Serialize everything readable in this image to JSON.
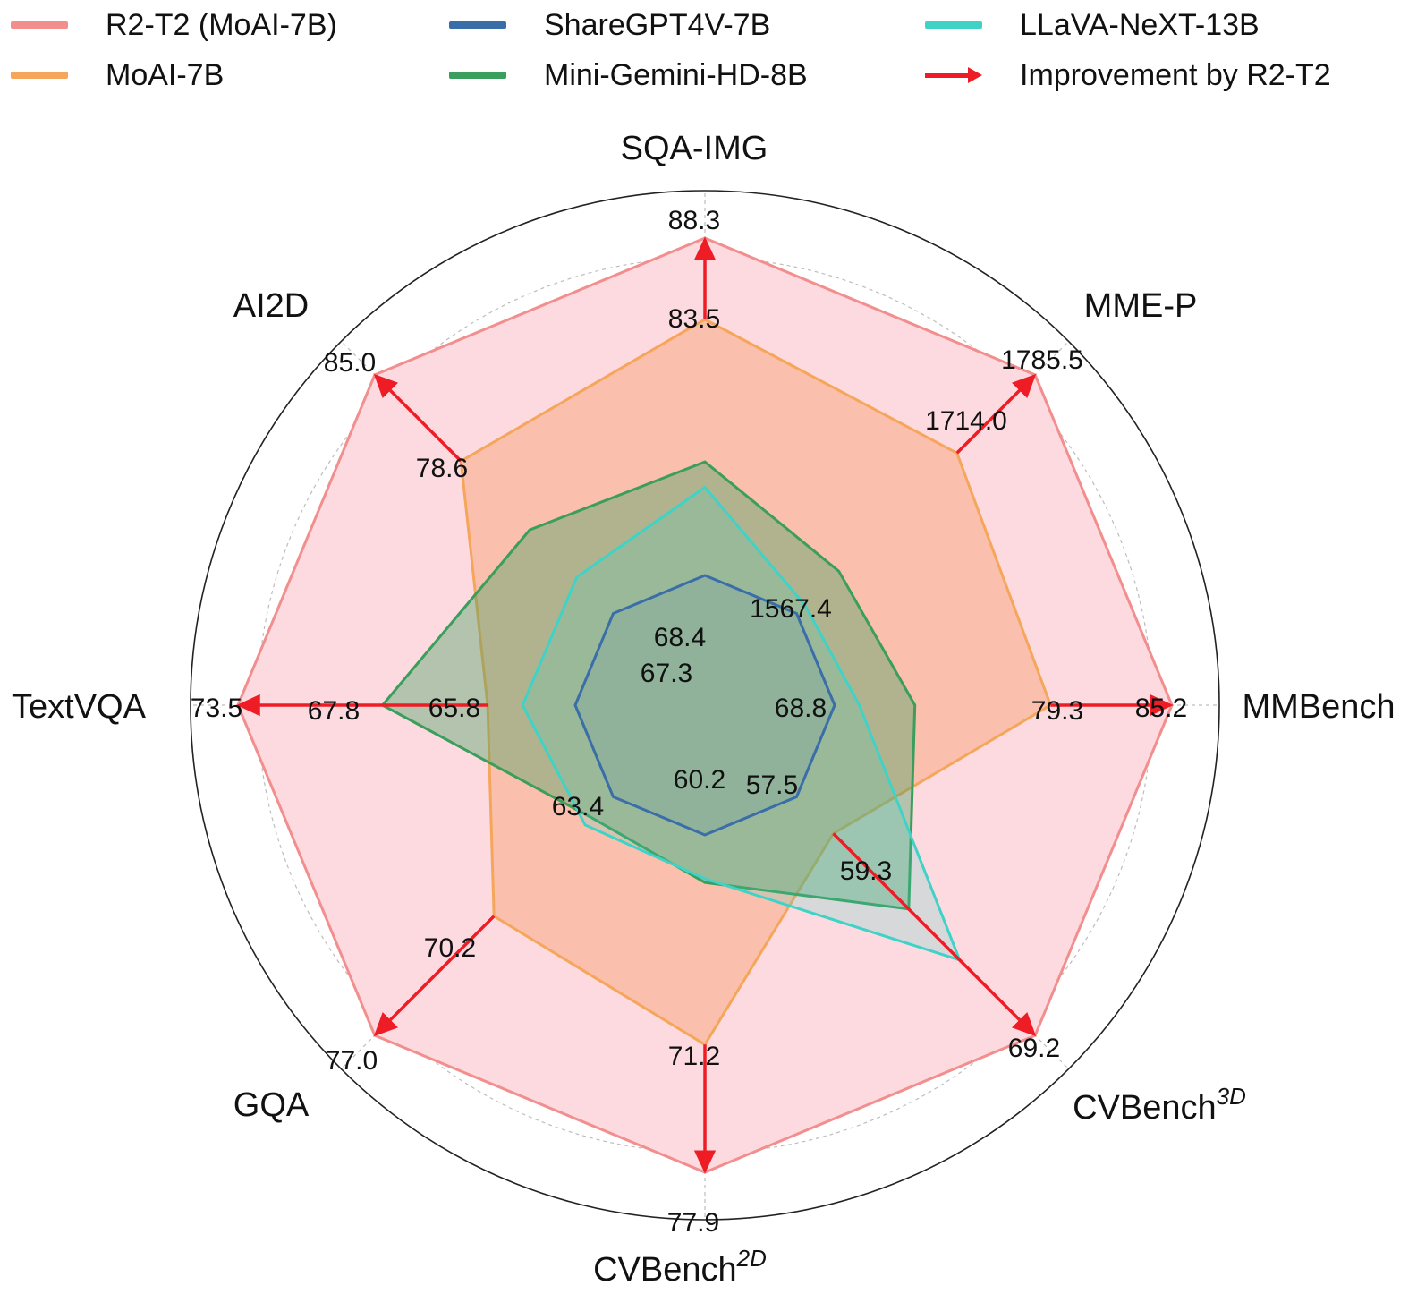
{
  "chart_data": {
    "type": "radar",
    "axes": [
      {
        "label": "MMBench",
        "sup": "",
        "series_values": {
          "R2-T2 (MoAI-7B)": 85.2,
          "MoAI-7B": 79.3,
          "ShareGPT4V-7B": 68.8,
          "Mini-Gemini-HD-8B": 72.7,
          "LLaVA-NeXT-13B": 70.0
        }
      },
      {
        "label": "MME-P",
        "sup": "",
        "series_values": {
          "R2-T2 (MoAI-7B)": 1785.5,
          "MoAI-7B": 1714.0,
          "ShareGPT4V-7B": 1567.4,
          "Mini-Gemini-HD-8B": 1606.0,
          "LLaVA-NeXT-13B": 1575.0
        }
      },
      {
        "label": "SQA-IMG",
        "sup": "",
        "series_values": {
          "R2-T2 (MoAI-7B)": 88.3,
          "MoAI-7B": 83.5,
          "ShareGPT4V-7B": 68.4,
          "Mini-Gemini-HD-8B": 75.1,
          "LLaVA-NeXT-13B": 73.6
        }
      },
      {
        "label": "AI2D",
        "sup": "",
        "series_values": {
          "R2-T2 (MoAI-7B)": 85.0,
          "MoAI-7B": 78.6,
          "ShareGPT4V-7B": 67.3,
          "Mini-Gemini-HD-8B": 73.5,
          "LLaVA-NeXT-13B": 70.0
        }
      },
      {
        "label": "TextVQA",
        "sup": "",
        "series_values": {
          "R2-T2 (MoAI-7B)": 73.5,
          "MoAI-7B": 67.8,
          "ShareGPT4V-7B": 65.8,
          "Mini-Gemini-HD-8B": 70.2,
          "LLaVA-NeXT-13B": 67.0
        }
      },
      {
        "label": "GQA",
        "sup": "",
        "series_values": {
          "R2-T2 (MoAI-7B)": 77.0,
          "MoAI-7B": 70.2,
          "ShareGPT4V-7B": 63.4,
          "Mini-Gemini-HD-8B": 64.6,
          "LLaVA-NeXT-13B": 65.0
        }
      },
      {
        "label": "CVBench",
        "sup": "2D",
        "series_values": {
          "R2-T2 (MoAI-7B)": 77.9,
          "MoAI-7B": 71.2,
          "ShareGPT4V-7B": 60.2,
          "Mini-Gemini-HD-8B": 62.7,
          "LLaVA-NeXT-13B": 62.5
        }
      },
      {
        "label": "CVBench",
        "sup": "3D",
        "series_values": {
          "R2-T2 (MoAI-7B)": 69.2,
          "MoAI-7B": 59.3,
          "ShareGPT4V-7B": 57.5,
          "Mini-Gemini-HD-8B": 63.0,
          "LLaVA-NeXT-13B": 65.5
        }
      }
    ],
    "series": [
      {
        "name": "R2-T2 (MoAI-7B)",
        "color": "#f28e8e",
        "fill": "#fddadf",
        "fill_opacity": 1.0
      },
      {
        "name": "MoAI-7B",
        "color": "#f5a65b",
        "fill": "#f7a070",
        "fill_opacity": 0.45
      },
      {
        "name": "Mini-Gemini-HD-8B",
        "color": "#3a9e5c",
        "fill": "#3a9e5c",
        "fill_opacity": 0.38
      },
      {
        "name": "LLaVA-NeXT-13B",
        "color": "#3fd3c8",
        "fill": "#3fd3c8",
        "fill_opacity": 0.2
      },
      {
        "name": "ShareGPT4V-7B",
        "color": "#3a6ea8",
        "fill": "#3a6ea8",
        "fill_opacity": 0.1
      }
    ],
    "improvement": {
      "name": "Improvement by R2-T2",
      "color": "#ee1c25",
      "from": "MoAI-7B",
      "to": "R2-T2 (MoAI-7B)"
    },
    "value_labels": [
      {
        "axis": 0,
        "text": "85.2"
      },
      {
        "axis": 0,
        "text": "79.3"
      },
      {
        "axis": 0,
        "text": "68.8"
      },
      {
        "axis": 1,
        "text": "1785.5"
      },
      {
        "axis": 1,
        "text": "1714.0"
      },
      {
        "axis": 1,
        "text": "1567.4"
      },
      {
        "axis": 2,
        "text": "88.3"
      },
      {
        "axis": 2,
        "text": "83.5"
      },
      {
        "axis": 2,
        "text": "68.4"
      },
      {
        "axis": 3,
        "text": "85.0"
      },
      {
        "axis": 3,
        "text": "78.6"
      },
      {
        "axis": 3,
        "text": "67.3"
      },
      {
        "axis": 4,
        "text": "73.5"
      },
      {
        "axis": 4,
        "text": "67.8"
      },
      {
        "axis": 4,
        "text": "65.8"
      },
      {
        "axis": 5,
        "text": "77.0"
      },
      {
        "axis": 5,
        "text": "70.2"
      },
      {
        "axis": 5,
        "text": "63.4"
      },
      {
        "axis": 6,
        "text": "77.9"
      },
      {
        "axis": 6,
        "text": "71.2"
      },
      {
        "axis": 6,
        "text": "60.2"
      },
      {
        "axis": 7,
        "text": "69.2"
      },
      {
        "axis": 7,
        "text": "59.3"
      },
      {
        "axis": 7,
        "text": "57.5"
      }
    ],
    "grid": true,
    "legend": {
      "position": "top",
      "entries": [
        {
          "label": "R2-T2 (MoAI-7B)",
          "color": "#f28e8e",
          "kind": "line"
        },
        {
          "label": "ShareGPT4V-7B",
          "color": "#3a6ea8",
          "kind": "line"
        },
        {
          "label": "LLaVA-NeXT-13B",
          "color": "#3fd3c8",
          "kind": "line"
        },
        {
          "label": "MoAI-7B",
          "color": "#f5a65b",
          "kind": "line"
        },
        {
          "label": "Mini-Gemini-HD-8B",
          "color": "#3a9e5c",
          "kind": "line"
        },
        {
          "label": "Improvement by R2-T2",
          "color": "#ee1c25",
          "kind": "arrow"
        }
      ]
    }
  }
}
